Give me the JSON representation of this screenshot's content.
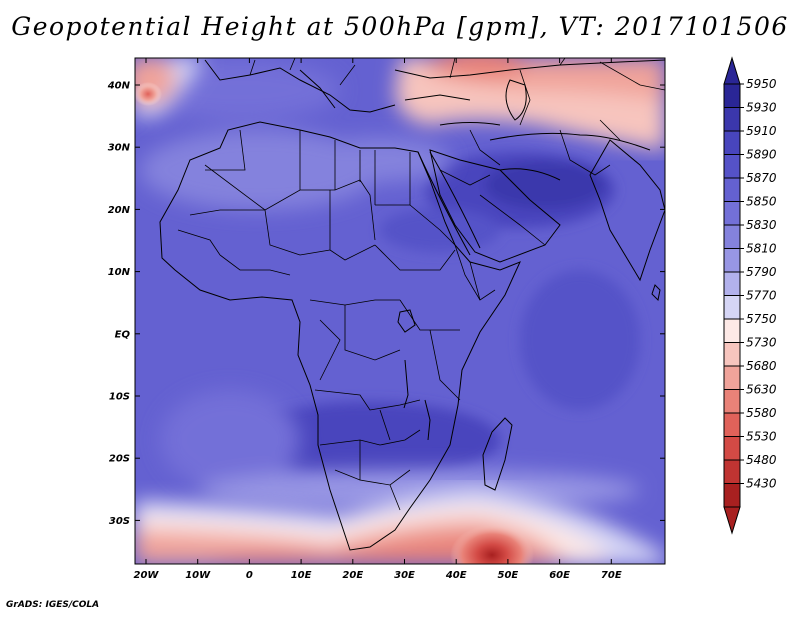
{
  "title": "Geopotential Height at 500hPa [gpm], VT: 2017101506",
  "credit": "GrADS: IGES/COLA",
  "lat_labels": [
    "40N",
    "30N",
    "20N",
    "10N",
    "EQ",
    "10S",
    "20S",
    "30S"
  ],
  "lon_labels": [
    "20W",
    "10W",
    "0",
    "10E",
    "20E",
    "30E",
    "40E",
    "50E",
    "60E",
    "70E"
  ],
  "colorbar": {
    "levels": [
      "5950",
      "5930",
      "5910",
      "5890",
      "5870",
      "5850",
      "5830",
      "5810",
      "5790",
      "5770",
      "5750",
      "5730",
      "5680",
      "5630",
      "5580",
      "5530",
      "5480",
      "5430"
    ],
    "colors": [
      "#2a2696",
      "#3b37ac",
      "#4845bd",
      "#5552c8",
      "#6461d1",
      "#7370d8",
      "#8482dd",
      "#9896e4",
      "#b2b1ec",
      "#d5d5f5",
      "#fde9e6",
      "#f7c5be",
      "#f0a39a",
      "#e98278",
      "#e0625a",
      "#d34a45",
      "#c03432",
      "#a82020"
    ]
  },
  "map": {
    "field": "Geopotential Height at 500hPa",
    "units": "gpm",
    "valid_time": "2017101506"
  }
}
